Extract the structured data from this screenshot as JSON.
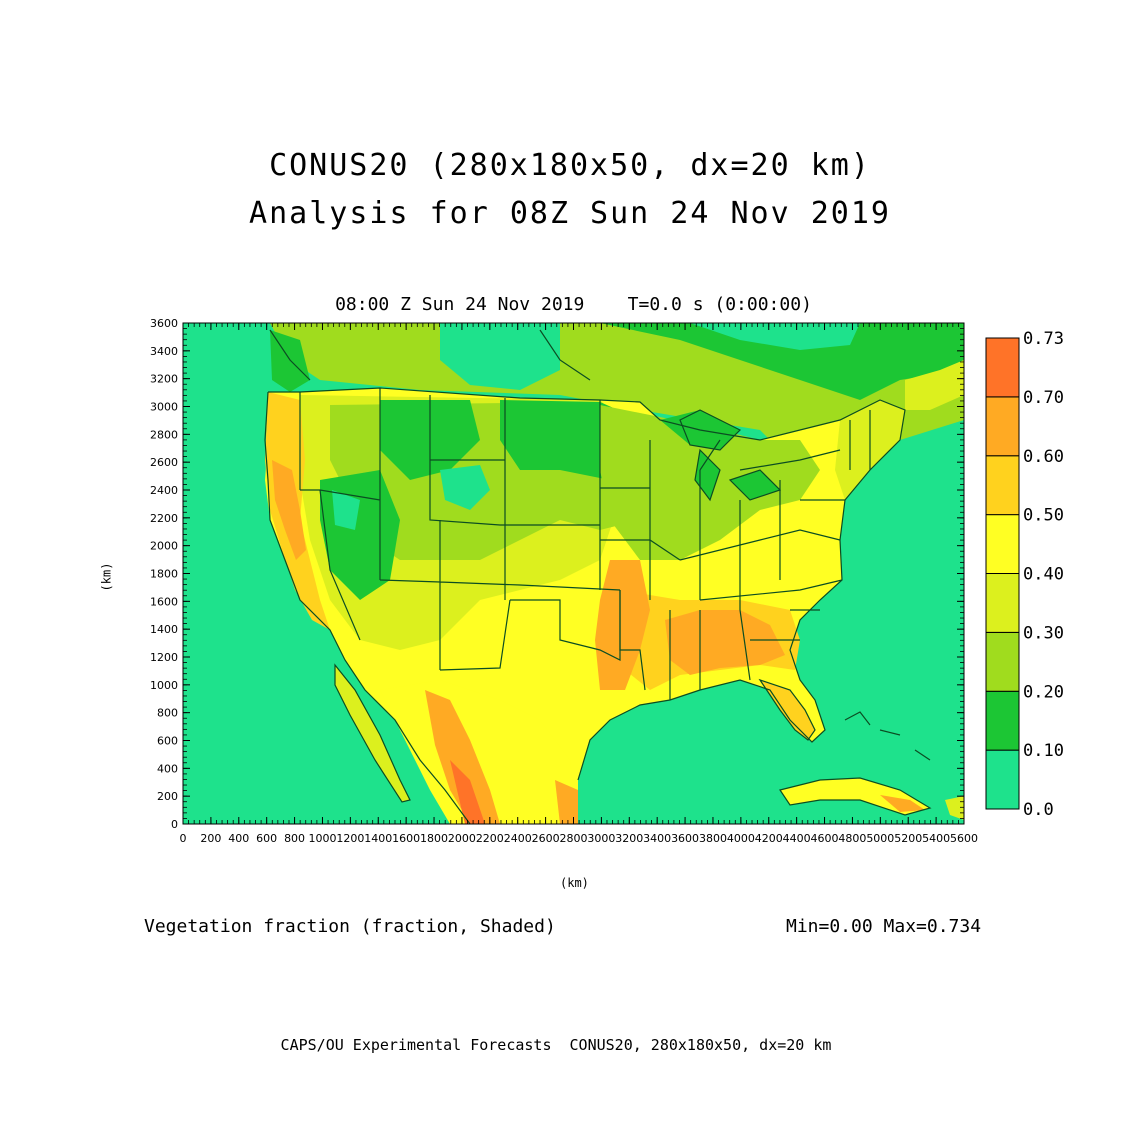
{
  "title_line1": "CONUS20 (280x180x50, dx=20 km)",
  "title_line2": "Analysis for 08Z Sun 24 Nov 2019",
  "subtitle": "08:00 Z Sun 24 Nov 2019    T=0.0 s (0:00:00)",
  "variable_label": "Vegetation fraction (fraction, Shaded)",
  "min_max": "Min=0.00 Max=0.734",
  "footer": "CAPS/OU Experimental Forecasts  CONUS20, 280x180x50, dx=20 km",
  "map": {
    "x_axis_label": "(km)",
    "y_axis_label": "(km)",
    "x_ticks": [
      0,
      200,
      400,
      600,
      800,
      1000,
      1200,
      1400,
      1600,
      1800,
      2000,
      2200,
      2400,
      2600,
      2800,
      3000,
      3200,
      3400,
      3600,
      3800,
      4000,
      4200,
      4400,
      4600,
      4800,
      5000,
      5200,
      5400,
      5600
    ],
    "y_ticks": [
      0,
      200,
      400,
      600,
      800,
      1000,
      1200,
      1400,
      1600,
      1800,
      2000,
      2200,
      2400,
      2600,
      2800,
      3000,
      3200,
      3400,
      3600
    ],
    "x_range_km": [
      0,
      5600
    ],
    "y_range_km": [
      0,
      3600
    ]
  },
  "colorbar": {
    "labels": [
      "0.0",
      "0.10",
      "0.20",
      "0.30",
      "0.40",
      "0.50",
      "0.60",
      "0.70",
      "0.73"
    ],
    "colors": [
      "#1ee28c",
      "#1cc634",
      "#a0dc1e",
      "#dcf01e",
      "#ffff23",
      "#ffd21e",
      "#ffaa23",
      "#ff7328"
    ]
  },
  "colors": {
    "ocean": "#1ee28c",
    "boundary": "#0b4d22"
  }
}
